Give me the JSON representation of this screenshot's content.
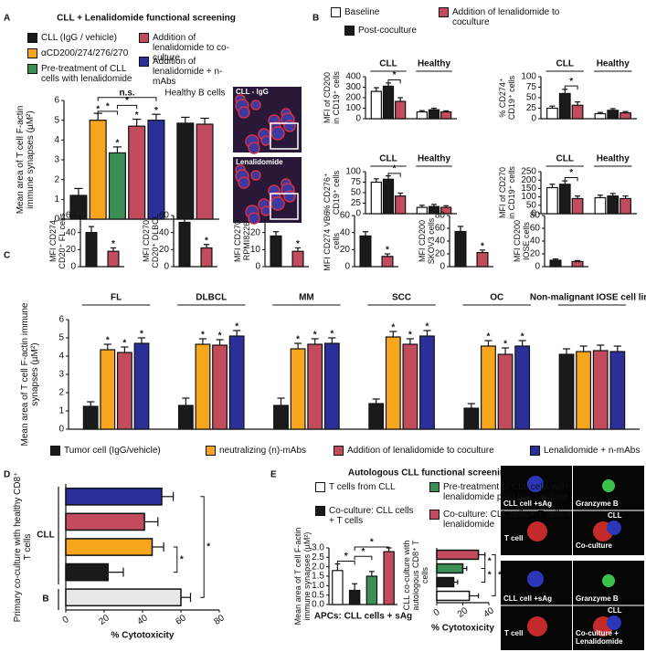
{
  "panels": [
    "A",
    "B",
    "C",
    "D",
    "E"
  ],
  "micrographs": [
    {
      "labels": [
        "CLL - IgG"
      ]
    },
    {
      "labels": [
        "Lenalidomide"
      ]
    },
    {
      "labels": [
        "CLL cell +sAg",
        "Granzyme B",
        "CLL",
        "T cell",
        "Co-culture"
      ]
    },
    {
      "labels": [
        "CLL cell +sAg",
        "Granzyme B",
        "CLL",
        "T cell",
        "Co-culture + Lenalidomide"
      ]
    }
  ],
  "chart_data": [
    {
      "type": "bar",
      "title": "CLL + Lenalidomide functional screening",
      "ylabel": "Mean area of T cell F-actin immune synapses (µM²)",
      "categories": [
        null,
        "Healthy B cells"
      ],
      "ylim": [
        0,
        6
      ],
      "yticks": [
        0,
        1,
        2,
        3,
        4,
        5,
        6
      ],
      "series": [
        {
          "name": "CLL (IgG / vehicle)",
          "color": "#1a1a1a",
          "values": [
            1.2,
            4.85
          ],
          "errors": [
            0.35,
            0.3
          ]
        },
        {
          "name": "αCD200/274/276/270",
          "color": "#f7a51c",
          "values": [
            5.0,
            null
          ],
          "errors": [
            0.35,
            null
          ],
          "labels": [
            "*",
            null
          ]
        },
        {
          "name": "Pre-treatment of CLL cells with lenalidomide",
          "color": "#3b8f55",
          "values": [
            3.35,
            null
          ],
          "errors": [
            0.3,
            null
          ],
          "labels": [
            "*",
            null
          ]
        },
        {
          "name": "Addition of lenalidomide to co-culture",
          "color": "#c24b5e",
          "values": [
            4.7,
            4.8
          ],
          "errors": [
            0.35,
            0.3
          ],
          "labels": [
            "*",
            null
          ]
        },
        {
          "name": "Addition of lenalidomide + n-mAbs",
          "color": "#2a2f9a",
          "values": [
            5.0,
            null
          ],
          "errors": [
            0.3,
            null
          ],
          "labels": [
            "*",
            null
          ]
        }
      ],
      "annotations": [
        "*",
        "*",
        "n.s."
      ]
    },
    {
      "type": "bar",
      "ylabel": "MFI of CD200 in CD19⁺ cells",
      "categories": [
        "CLL",
        "Healthy"
      ],
      "ylim": [
        0,
        400
      ],
      "yticks": [
        0,
        100,
        200,
        300,
        400
      ],
      "series": [
        {
          "name": "Baseline",
          "color": "#ffffff",
          "values": [
            260,
            65
          ],
          "errors": [
            35,
            12
          ]
        },
        {
          "name": "Post-coculture",
          "color": "#1a1a1a",
          "values": [
            310,
            85
          ],
          "errors": [
            30,
            15
          ]
        },
        {
          "name": "Addition of lenalidomide to coculture",
          "color": "#c24b5e",
          "values": [
            165,
            65
          ],
          "errors": [
            35,
            10
          ]
        }
      ],
      "annotations": [
        "*"
      ]
    },
    {
      "type": "bar",
      "ylabel": "% CD274⁺ CD19⁺ cells",
      "categories": [
        "CLL",
        "Healthy"
      ],
      "ylim": [
        0,
        100
      ],
      "yticks": [
        0,
        25,
        50,
        75,
        100
      ],
      "series": [
        {
          "color": "#ffffff",
          "values": [
            25,
            12
          ],
          "errors": [
            5,
            3
          ]
        },
        {
          "color": "#1a1a1a",
          "values": [
            60,
            20
          ],
          "errors": [
            10,
            4
          ]
        },
        {
          "color": "#c24b5e",
          "values": [
            32,
            14
          ],
          "errors": [
            8,
            3
          ]
        }
      ],
      "annotations": [
        "*"
      ]
    },
    {
      "type": "bar",
      "ylabel": "% CD276⁺ CD19⁺ cells",
      "categories": [
        "CLL",
        "Healthy"
      ],
      "ylim": [
        0,
        100
      ],
      "yticks": [
        0,
        25,
        50,
        75,
        100
      ],
      "series": [
        {
          "color": "#ffffff",
          "values": [
            75,
            15
          ],
          "errors": [
            8,
            5
          ]
        },
        {
          "color": "#1a1a1a",
          "values": [
            82,
            17
          ],
          "errors": [
            8,
            5
          ]
        },
        {
          "color": "#c24b5e",
          "values": [
            42,
            15
          ],
          "errors": [
            7,
            4
          ]
        }
      ],
      "annotations": [
        "*"
      ]
    },
    {
      "type": "bar",
      "ylabel": "MFI of CD270 in CD19⁺ cells",
      "categories": [
        "CLL",
        "Healthy"
      ],
      "ylim": [
        0,
        250
      ],
      "yticks": [
        0,
        50,
        100,
        150,
        200,
        250
      ],
      "series": [
        {
          "color": "#ffffff",
          "values": [
            155,
            95
          ],
          "errors": [
            20,
            15
          ]
        },
        {
          "color": "#1a1a1a",
          "values": [
            175,
            105
          ],
          "errors": [
            20,
            15
          ]
        },
        {
          "color": "#c24b5e",
          "values": [
            90,
            90
          ],
          "errors": [
            15,
            15
          ]
        }
      ],
      "annotations": [
        "*"
      ]
    },
    {
      "type": "bar",
      "ylabel": "MFI CD274 CD20⁺ FL cells",
      "ylim": [
        0,
        60
      ],
      "yticks": [
        0,
        20,
        40,
        60
      ],
      "values": [
        40,
        18
      ],
      "colors": [
        "#1a1a1a",
        "#c24b5e"
      ],
      "errors": [
        7,
        4
      ],
      "labels": [
        null,
        "*"
      ]
    },
    {
      "type": "bar",
      "ylabel": "MFI CD270 CD20⁺ DLBCL",
      "ylim": [
        0,
        60
      ],
      "yticks": [
        0,
        20,
        40,
        60
      ],
      "values": [
        52,
        22
      ],
      "colors": [
        "#1a1a1a",
        "#c24b5e"
      ],
      "errors": [
        4,
        4
      ],
      "labels": [
        null,
        "*"
      ]
    },
    {
      "type": "bar",
      "ylabel": "MFI CD270 RPMI8226",
      "ylim": [
        0,
        30
      ],
      "yticks": [
        0,
        10,
        20,
        30
      ],
      "values": [
        18,
        9
      ],
      "colors": [
        "#1a1a1a",
        "#c24b5e"
      ],
      "errors": [
        2.5,
        2
      ],
      "labels": [
        null,
        "*"
      ]
    },
    {
      "type": "bar",
      "ylabel": "MFI CD274 VB6 cells",
      "ylim": [
        0,
        60
      ],
      "yticks": [
        0,
        20,
        40,
        60
      ],
      "values": [
        36,
        12
      ],
      "colors": [
        "#1a1a1a",
        "#c24b5e"
      ],
      "errors": [
        5,
        3
      ],
      "labels": [
        null,
        "*"
      ]
    },
    {
      "type": "bar",
      "ylabel": "MFI CD200 SKOV3 cells",
      "ylim": [
        0,
        80
      ],
      "yticks": [
        0,
        20,
        40,
        60,
        80
      ],
      "values": [
        55,
        22
      ],
      "colors": [
        "#1a1a1a",
        "#c24b5e"
      ],
      "errors": [
        8,
        4
      ],
      "labels": [
        null,
        "*"
      ]
    },
    {
      "type": "bar",
      "ylabel": "MFI CD200 IOSE cells",
      "ylim": [
        0,
        80
      ],
      "yticks": [
        0,
        20,
        40,
        60,
        80
      ],
      "values": [
        10,
        8
      ],
      "colors": [
        "#1a1a1a",
        "#c24b5e"
      ],
      "errors": [
        2,
        1.5
      ]
    },
    {
      "type": "bar",
      "ylabel": "Mean area of T cell F-actin immune synapses (µM²)",
      "categories": [
        "FL",
        "DLBCL",
        "MM",
        "SCC",
        "OC",
        "Non-malignant IOSE cell line"
      ],
      "ylim": [
        0,
        6
      ],
      "yticks": [
        0,
        1,
        2,
        3,
        4,
        5,
        6
      ],
      "series": [
        {
          "name": "Tumor cell (IgG/vehicle)",
          "color": "#1a1a1a",
          "values": [
            1.25,
            1.3,
            1.3,
            1.4,
            1.15,
            4.1
          ],
          "errors": [
            0.25,
            0.4,
            0.4,
            0.25,
            0.25,
            0.3
          ]
        },
        {
          "name": "neutralizing (n)-mAbs",
          "color": "#f7a51c",
          "values": [
            4.35,
            4.65,
            4.4,
            5.05,
            4.55,
            4.25
          ],
          "errors": [
            0.3,
            0.3,
            0.3,
            0.3,
            0.3,
            0.3
          ],
          "labels": [
            "*",
            "*",
            "*",
            "*",
            "*",
            null
          ]
        },
        {
          "name": "Addition of lenalidomide to coculture",
          "color": "#c24b5e",
          "values": [
            4.2,
            4.6,
            4.65,
            4.65,
            4.1,
            4.3
          ],
          "errors": [
            0.3,
            0.3,
            0.3,
            0.3,
            0.35,
            0.3
          ],
          "labels": [
            "*",
            "*",
            "*",
            "*",
            "*",
            null
          ]
        },
        {
          "name": "Lenalidomide + n-mAbs",
          "color": "#2a2f9a",
          "values": [
            4.7,
            5.1,
            4.7,
            5.1,
            4.55,
            4.25
          ],
          "errors": [
            0.3,
            0.3,
            0.3,
            0.3,
            0.3,
            0.3
          ],
          "labels": [
            "*",
            "*",
            "*",
            "*",
            "*",
            null
          ]
        }
      ]
    },
    {
      "type": "hbar",
      "ylabel": "Primary co-culture with healthy CD8⁺ T cells",
      "xlabel": "% Cytotoxicity",
      "values": [
        50,
        41,
        45,
        22,
        60
      ],
      "errors": [
        6,
        7,
        6,
        8,
        5
      ],
      "colors": [
        "#2a2f9a",
        "#c24b5e",
        "#f7a51c",
        "#1a1a1a",
        "#e8e8e8"
      ],
      "xlim": [
        0,
        80
      ],
      "xticks": [
        0,
        20,
        40,
        60,
        80
      ],
      "group_labels": [
        "CLL",
        "B"
      ],
      "annotations": [
        "*",
        "*"
      ]
    },
    {
      "type": "bar",
      "title": "Autologous CLL functional screening",
      "ylabel": "Mean area of T cell F-actin immune synapses (µM²)",
      "xlabel": "APCs: CLL cells + sAg",
      "legend": [
        "T cells from CLL",
        "Co-culture: CLL cells + T cells",
        "Pre-treatment of CLL cells with lenalidomide prior to co-culture",
        "Co-culture: CLL cells + T cells + lenalidomide"
      ],
      "values": [
        1.8,
        0.75,
        1.5,
        2.8
      ],
      "errors": [
        0.35,
        0.35,
        0.25,
        0.2
      ],
      "colors": [
        "#ffffff",
        "#1a1a1a",
        "#3b8f55",
        "#c24b5e"
      ],
      "ylim": [
        0,
        3
      ],
      "yticks": [
        {
          "value": 0,
          "label": "0.0"
        },
        0.5,
        {
          "value": 1,
          "label": "1.0"
        },
        1.5,
        {
          "value": 2,
          "label": "2.0"
        },
        2.5,
        {
          "value": 3,
          "label": "3.0"
        }
      ],
      "annotations": [
        "*",
        "*",
        "*"
      ]
    },
    {
      "type": "hbar",
      "ylabel": "CLL co-culture with autologous CD8⁺ T cells",
      "xlabel": "% Cytotoxicity",
      "values": [
        32,
        20,
        13,
        25
      ],
      "errors": [
        5,
        3,
        3,
        7
      ],
      "colors": [
        "#c24b5e",
        "#3b8f55",
        "#1a1a1a",
        "#ffffff"
      ],
      "xlim": [
        0,
        40
      ],
      "xticks": [
        0,
        20,
        40
      ],
      "annotations": [
        "*",
        "*",
        "*"
      ]
    }
  ]
}
